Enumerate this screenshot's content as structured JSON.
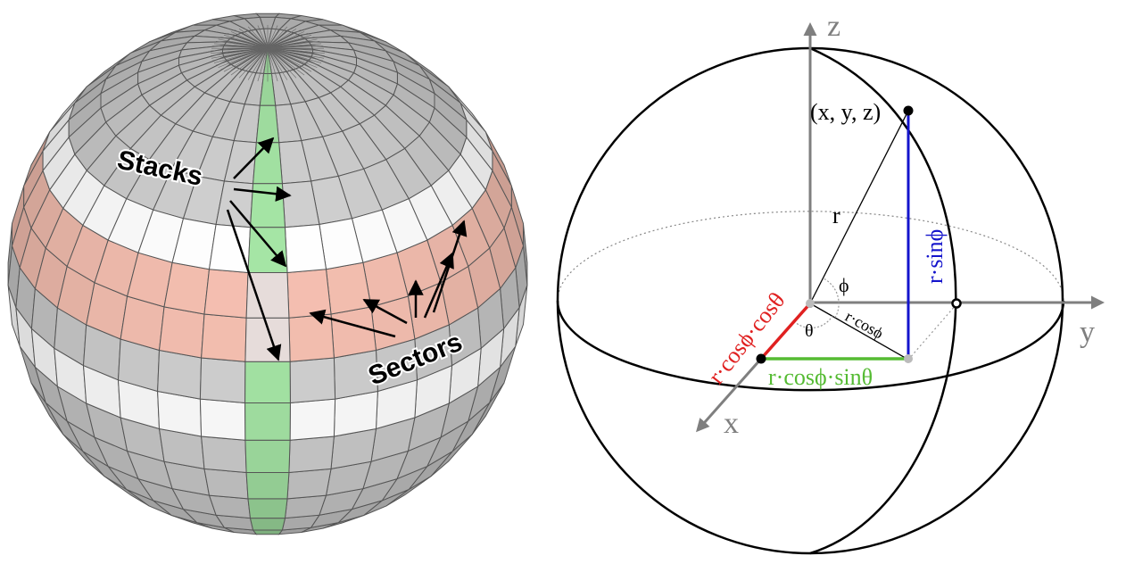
{
  "left_panel": {
    "stacks_label": "Stacks",
    "sectors_label": "Sectors"
  },
  "right_panel": {
    "axis_z": "z",
    "axis_y": "y",
    "axis_x": "x",
    "point_label": "(x, y, z)",
    "radius_label": "r",
    "phi_label": "ϕ",
    "theta_label": "θ",
    "proj_label": "r·cosϕ",
    "z_comp_label": "r·sinϕ",
    "x_comp_label": "r·cosϕ·cosθ",
    "y_comp_label": "r·cosϕ·sinθ"
  },
  "colors": {
    "sphere_gray": "#9a9a9a",
    "stack_band": "#f2c4b4",
    "sector_band": "#b8f5b8",
    "axis_gray": "#7f7f7f",
    "z_component": "#1414cc",
    "x_component": "#e02020",
    "y_component": "#55bb33"
  }
}
